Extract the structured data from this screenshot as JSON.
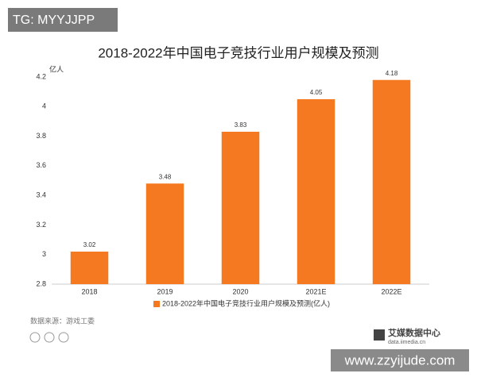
{
  "chart_data": {
    "type": "bar",
    "title": "2018-2022年中国电子竞技行业用户规模及预测",
    "y_unit": "亿人",
    "categories": [
      "2018",
      "2019",
      "2020",
      "2021E",
      "2022E"
    ],
    "series": [
      {
        "name": "2018-2022年中国电子竞技行业用户规模及预测(亿人)",
        "color": "#f47920",
        "values": [
          3.02,
          3.48,
          3.83,
          4.05,
          4.18
        ]
      }
    ],
    "ylim": [
      2.8,
      4.2
    ],
    "yticks": [
      2.8,
      3,
      3.2,
      3.4,
      3.6,
      3.8,
      4,
      4.2
    ],
    "grid": false,
    "legend": "bottom",
    "source": "数据来源：游戏工委",
    "brand": "艾媒数据中心",
    "brand_url": "data.iimedia.cn",
    "tag": "TG: MYYJJPP",
    "watermark": "www.zzyijude.com"
  }
}
